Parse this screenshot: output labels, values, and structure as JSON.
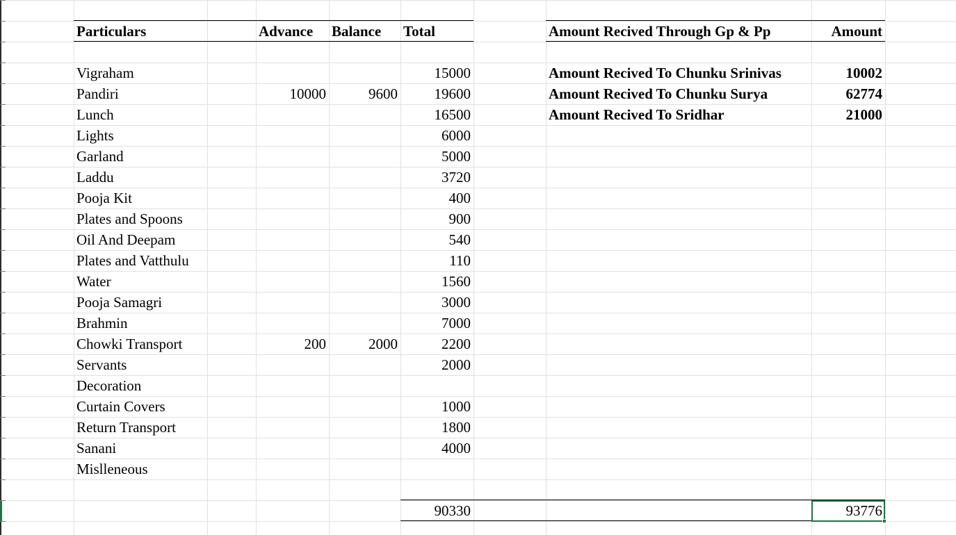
{
  "headers": {
    "particulars": "Particulars",
    "advance": "Advance",
    "balance": "Balance",
    "total": "Total",
    "received_through": "Amount Recived Through Gp & Pp",
    "amount": "Amount"
  },
  "expenses": [
    {
      "particular": "Vigraham",
      "advance": "",
      "balance": "",
      "total": "15000"
    },
    {
      "particular": "Pandiri",
      "advance": "10000",
      "balance": "9600",
      "total": "19600"
    },
    {
      "particular": "Lunch",
      "advance": "",
      "balance": "",
      "total": "16500"
    },
    {
      "particular": "Lights",
      "advance": "",
      "balance": "",
      "total": "6000"
    },
    {
      "particular": "Garland",
      "advance": "",
      "balance": "",
      "total": "5000"
    },
    {
      "particular": "Laddu",
      "advance": "",
      "balance": "",
      "total": "3720"
    },
    {
      "particular": "Pooja Kit",
      "advance": "",
      "balance": "",
      "total": "400"
    },
    {
      "particular": "Plates and Spoons",
      "advance": "",
      "balance": "",
      "total": "900"
    },
    {
      "particular": "Oil And Deepam",
      "advance": "",
      "balance": "",
      "total": "540"
    },
    {
      "particular": "Plates and Vatthulu",
      "advance": "",
      "balance": "",
      "total": "110"
    },
    {
      "particular": "Water",
      "advance": "",
      "balance": "",
      "total": "1560"
    },
    {
      "particular": "Pooja Samagri",
      "advance": "",
      "balance": "",
      "total": "3000"
    },
    {
      "particular": "Brahmin",
      "advance": "",
      "balance": "",
      "total": "7000"
    },
    {
      "particular": "Chowki Transport",
      "advance": "200",
      "balance": "2000",
      "total": "2200"
    },
    {
      "particular": "Servants",
      "advance": "",
      "balance": "",
      "total": "2000"
    },
    {
      "particular": "Decoration",
      "advance": "",
      "balance": "",
      "total": ""
    },
    {
      "particular": "Curtain Covers",
      "advance": "",
      "balance": "",
      "total": "1000"
    },
    {
      "particular": "Return Transport",
      "advance": "",
      "balance": "",
      "total": "1800"
    },
    {
      "particular": "Sanani",
      "advance": "",
      "balance": "",
      "total": "4000"
    },
    {
      "particular": "Mislleneous",
      "advance": "",
      "balance": "",
      "total": ""
    }
  ],
  "receipts": [
    {
      "label": "Amount Recived To Chunku Srinivas",
      "amount": "10002"
    },
    {
      "label": "Amount Recived To Chunku Surya",
      "amount": "62774"
    },
    {
      "label": "Amount Recived To Sridhar",
      "amount": "21000"
    }
  ],
  "totals": {
    "expenses_total": "90330",
    "received_total": "93776"
  },
  "colors": {
    "gridline": "#e1e1e1",
    "selection": "#217346"
  }
}
